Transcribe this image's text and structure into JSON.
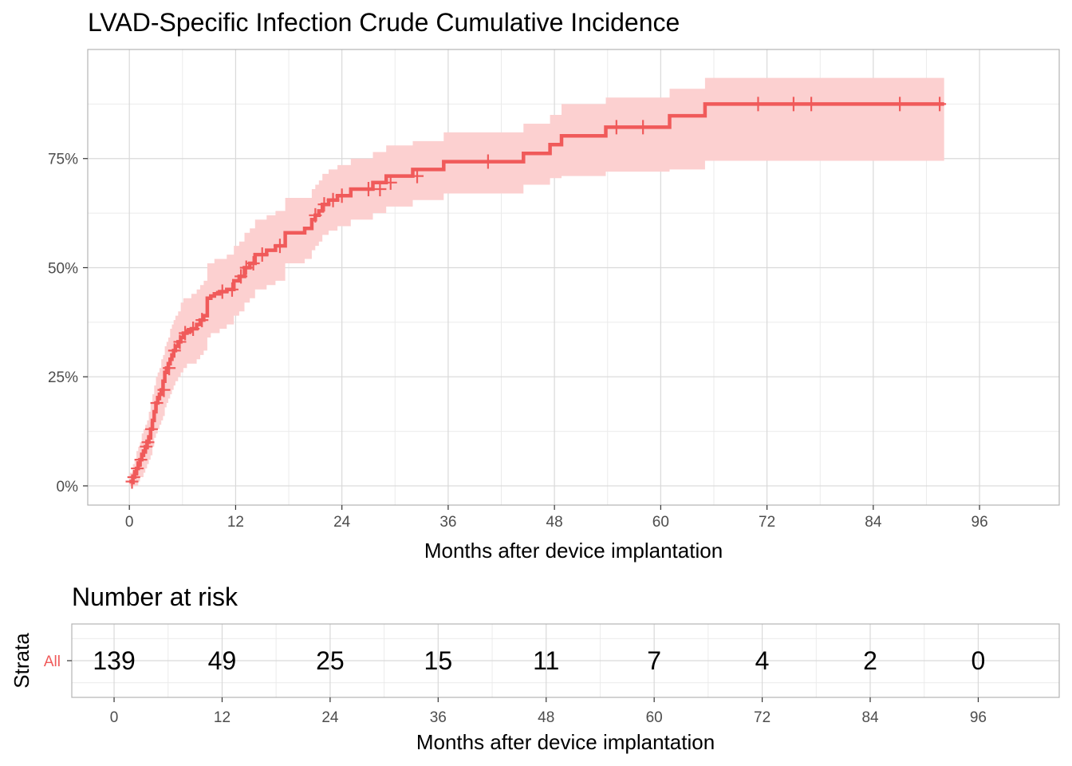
{
  "colors": {
    "series": "#F05A5A",
    "band": "#FCD0D0",
    "grid_major": "#D9D9D9",
    "grid_minor": "#EBEBEB",
    "panel_border": "#B3B3B3"
  },
  "chart_data": [
    {
      "type": "line",
      "title": "LVAD-Specific Infection Crude Cumulative Incidence",
      "xlabel": "Months after device implantation",
      "ylabel": "",
      "xlim": [
        -4.7,
        105
      ],
      "ylim": [
        -0.044,
        1.0
      ],
      "x_ticks": [
        0,
        12,
        24,
        36,
        48,
        60,
        72,
        84,
        96
      ],
      "x_tick_labels": [
        "0",
        "12",
        "24",
        "36",
        "48",
        "60",
        "72",
        "84",
        "96"
      ],
      "y_ticks": [
        0,
        0.25,
        0.5,
        0.75
      ],
      "y_tick_labels": [
        "0%",
        "25%",
        "50%",
        "75%"
      ],
      "grid": true,
      "series": [
        {
          "step_x": [
            0,
            0.4,
            0.6,
            0.8,
            1.0,
            1.2,
            1.4,
            1.6,
            1.8,
            2.0,
            2.2,
            2.4,
            2.6,
            2.8,
            3.0,
            3.2,
            3.4,
            3.6,
            3.8,
            4.0,
            4.2,
            4.4,
            4.6,
            4.8,
            5.0,
            5.2,
            5.5,
            5.8,
            6.1,
            6.5,
            7.0,
            7.6,
            8.0,
            8.4,
            8.8,
            9.2,
            9.6,
            10.2,
            11.0,
            11.8,
            12.4,
            13.0,
            13.6,
            14.2,
            15.5,
            16.5,
            17.6,
            19.8,
            20.6,
            21.0,
            21.4,
            21.8,
            22.5,
            23.5,
            25.0,
            27.5,
            29.0,
            32.0,
            35.5,
            44.5,
            47.5,
            48.8,
            53.8,
            61.0,
            65.0,
            92.0
          ],
          "step_y": [
            0.01,
            0.02,
            0.03,
            0.04,
            0.05,
            0.06,
            0.07,
            0.08,
            0.09,
            0.1,
            0.11,
            0.13,
            0.15,
            0.17,
            0.19,
            0.2,
            0.21,
            0.22,
            0.24,
            0.26,
            0.27,
            0.28,
            0.29,
            0.3,
            0.31,
            0.32,
            0.33,
            0.34,
            0.35,
            0.355,
            0.36,
            0.37,
            0.38,
            0.39,
            0.43,
            0.435,
            0.44,
            0.445,
            0.45,
            0.47,
            0.48,
            0.5,
            0.51,
            0.53,
            0.54,
            0.55,
            0.58,
            0.59,
            0.61,
            0.62,
            0.63,
            0.645,
            0.655,
            0.665,
            0.68,
            0.695,
            0.71,
            0.725,
            0.743,
            0.762,
            0.782,
            0.802,
            0.822,
            0.848,
            0.875,
            0.875
          ],
          "band_lower": [
            0.0,
            0.0,
            0.0,
            0.0,
            0.01,
            0.02,
            0.02,
            0.03,
            0.04,
            0.05,
            0.06,
            0.07,
            0.09,
            0.11,
            0.12,
            0.13,
            0.14,
            0.15,
            0.16,
            0.18,
            0.19,
            0.2,
            0.21,
            0.22,
            0.23,
            0.24,
            0.25,
            0.26,
            0.27,
            0.28,
            0.28,
            0.29,
            0.3,
            0.31,
            0.34,
            0.35,
            0.35,
            0.36,
            0.37,
            0.39,
            0.4,
            0.42,
            0.43,
            0.45,
            0.46,
            0.47,
            0.51,
            0.52,
            0.54,
            0.55,
            0.56,
            0.575,
            0.585,
            0.595,
            0.61,
            0.625,
            0.64,
            0.655,
            0.67,
            0.69,
            0.705,
            0.71,
            0.72,
            0.725,
            0.745,
            0.745
          ],
          "band_upper": [
            0.03,
            0.05,
            0.06,
            0.08,
            0.09,
            0.1,
            0.12,
            0.13,
            0.14,
            0.15,
            0.17,
            0.19,
            0.21,
            0.23,
            0.25,
            0.26,
            0.27,
            0.29,
            0.3,
            0.32,
            0.33,
            0.34,
            0.36,
            0.37,
            0.38,
            0.39,
            0.4,
            0.42,
            0.43,
            0.43,
            0.44,
            0.45,
            0.46,
            0.47,
            0.51,
            0.51,
            0.52,
            0.52,
            0.53,
            0.55,
            0.56,
            0.58,
            0.59,
            0.61,
            0.62,
            0.63,
            0.66,
            0.66,
            0.68,
            0.69,
            0.7,
            0.715,
            0.725,
            0.735,
            0.75,
            0.765,
            0.78,
            0.79,
            0.81,
            0.83,
            0.85,
            0.875,
            0.89,
            0.91,
            0.935,
            0.935
          ],
          "censor_x": [
            0.3,
            0.5,
            0.9,
            1.3,
            1.9,
            2.1,
            2.5,
            3.1,
            3.9,
            4.5,
            5.1,
            5.7,
            6.3,
            7.2,
            8.2,
            10.5,
            11.6,
            12.6,
            13.2,
            14.0,
            15.0,
            17.0,
            21.0,
            22.0,
            23.0,
            24.0,
            27.0,
            28.3,
            29.5,
            32.5,
            40.5,
            55.0,
            58.0,
            71.0,
            75.0,
            77.0,
            87.0,
            91.5
          ],
          "censor_y": [
            0.01,
            0.02,
            0.04,
            0.06,
            0.09,
            0.1,
            0.13,
            0.19,
            0.22,
            0.27,
            0.31,
            0.33,
            0.35,
            0.36,
            0.38,
            0.445,
            0.45,
            0.48,
            0.5,
            0.51,
            0.53,
            0.55,
            0.62,
            0.645,
            0.655,
            0.665,
            0.68,
            0.68,
            0.695,
            0.71,
            0.743,
            0.822,
            0.822,
            0.875,
            0.875,
            0.875,
            0.875,
            0.875
          ]
        }
      ]
    },
    {
      "type": "table",
      "title": "Number at risk",
      "xlabel": "Months after device implantation",
      "ylabel": "Strata",
      "strata": [
        "All"
      ],
      "xlim": [
        -4.7,
        105
      ],
      "x_ticks": [
        0,
        12,
        24,
        36,
        48,
        60,
        72,
        84,
        96
      ],
      "x_tick_labels": [
        "0",
        "12",
        "24",
        "36",
        "48",
        "60",
        "72",
        "84",
        "96"
      ],
      "values": [
        {
          "x": 0,
          "label": "139"
        },
        {
          "x": 12,
          "label": "49"
        },
        {
          "x": 24,
          "label": "25"
        },
        {
          "x": 36,
          "label": "15"
        },
        {
          "x": 48,
          "label": "11"
        },
        {
          "x": 60,
          "label": "7"
        },
        {
          "x": 72,
          "label": "4"
        },
        {
          "x": 84,
          "label": "2"
        },
        {
          "x": 96,
          "label": "0"
        }
      ]
    }
  ]
}
